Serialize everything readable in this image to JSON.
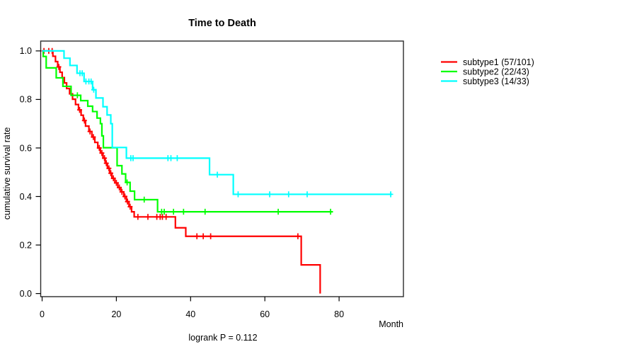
{
  "chart_data": {
    "type": "line",
    "variant": "kaplan_meier_step",
    "title": "Time to Death",
    "xlabel": "Month",
    "ylabel": "cumulative survival rate",
    "footnote": "logrank P = 0.112",
    "xlim": [
      0,
      97
    ],
    "ylim": [
      0.0,
      1.0
    ],
    "x_ticks": [
      0,
      20,
      40,
      60,
      80
    ],
    "y_ticks": [
      0.0,
      0.2,
      0.4,
      0.6,
      0.8,
      1.0
    ],
    "grid": false,
    "legend_position": "right-outside",
    "colors": {
      "subtype1": "#ff0000",
      "subtype2": "#00ff00",
      "subtype3": "#00ffff"
    },
    "series": [
      {
        "name": "subtype1",
        "legend_label": "subtype1 (57/101)",
        "events": 57,
        "n": 101,
        "color": "#ff0000",
        "steps": [
          [
            2.9,
            0.978
          ],
          [
            3.6,
            0.956
          ],
          [
            4.2,
            0.934
          ],
          [
            4.8,
            0.912
          ],
          [
            5.4,
            0.89
          ],
          [
            6.0,
            0.868
          ],
          [
            6.6,
            0.845
          ],
          [
            7.4,
            0.823
          ],
          [
            8.2,
            0.801
          ],
          [
            9.0,
            0.779
          ],
          [
            9.8,
            0.757
          ],
          [
            10.5,
            0.735
          ],
          [
            11.1,
            0.713
          ],
          [
            11.7,
            0.69
          ],
          [
            12.6,
            0.668
          ],
          [
            13.4,
            0.645
          ],
          [
            14.2,
            0.623
          ],
          [
            15.0,
            0.6
          ],
          [
            15.7,
            0.579
          ],
          [
            16.4,
            0.558
          ],
          [
            17.0,
            0.537
          ],
          [
            17.6,
            0.516
          ],
          [
            18.2,
            0.496
          ],
          [
            18.8,
            0.475
          ],
          [
            19.6,
            0.456
          ],
          [
            20.4,
            0.437
          ],
          [
            21.2,
            0.419
          ],
          [
            22.0,
            0.4
          ],
          [
            22.7,
            0.379
          ],
          [
            23.4,
            0.358
          ],
          [
            24.1,
            0.337
          ],
          [
            24.8,
            0.316
          ],
          [
            35.9,
            0.271
          ],
          [
            38.7,
            0.236
          ],
          [
            69.8,
            0.118
          ],
          [
            74.9,
            0.0
          ]
        ],
        "end_month": 74.9,
        "censor_months": [
          0.5,
          1.8,
          2.7,
          4.5,
          10.1,
          11.4,
          12.9,
          13.8,
          15.4,
          16.1,
          16.8,
          17.3,
          18.0,
          18.5,
          19.2,
          20.0,
          20.8,
          21.5,
          22.3,
          23.0,
          23.7,
          25.8,
          28.5,
          30.9,
          31.8,
          32.4,
          33.4,
          41.7,
          43.4,
          45.4,
          68.9
        ]
      },
      {
        "name": "subtype2",
        "legend_label": "subtype2 (22/43)",
        "events": 22,
        "n": 43,
        "color": "#00ff00",
        "steps": [
          [
            0.3,
            0.977
          ],
          [
            1.1,
            0.93
          ],
          [
            3.8,
            0.889
          ],
          [
            5.6,
            0.854
          ],
          [
            7.8,
            0.817
          ],
          [
            10.4,
            0.795
          ],
          [
            12.3,
            0.772
          ],
          [
            13.6,
            0.75
          ],
          [
            14.8,
            0.723
          ],
          [
            15.7,
            0.7
          ],
          [
            16.1,
            0.65
          ],
          [
            16.5,
            0.601
          ],
          [
            20.2,
            0.527
          ],
          [
            21.5,
            0.493
          ],
          [
            22.5,
            0.458
          ],
          [
            23.7,
            0.422
          ],
          [
            24.9,
            0.387
          ],
          [
            31.1,
            0.337
          ]
        ],
        "end_month": 78.3,
        "censor_months": [
          9.5,
          22.9,
          27.5,
          32.2,
          32.9,
          35.4,
          38.1,
          43.9,
          63.6,
          77.7
        ]
      },
      {
        "name": "subtype3",
        "legend_label": "subtype3 (14/33)",
        "events": 14,
        "n": 33,
        "color": "#00ffff",
        "steps": [
          [
            5.9,
            0.97
          ],
          [
            7.5,
            0.94
          ],
          [
            9.4,
            0.908
          ],
          [
            11.3,
            0.874
          ],
          [
            13.6,
            0.84
          ],
          [
            14.5,
            0.806
          ],
          [
            16.4,
            0.77
          ],
          [
            17.5,
            0.736
          ],
          [
            18.5,
            0.7
          ],
          [
            18.9,
            0.602
          ],
          [
            22.7,
            0.558
          ],
          [
            45.1,
            0.49
          ],
          [
            51.5,
            0.409
          ]
        ],
        "end_month": 94.2,
        "censor_months": [
          10.2,
          10.8,
          11.8,
          12.6,
          13.2,
          13.9,
          23.9,
          24.5,
          33.9,
          34.7,
          36.4,
          47.2,
          52.8,
          61.3,
          66.4,
          71.4,
          93.9
        ]
      }
    ]
  }
}
